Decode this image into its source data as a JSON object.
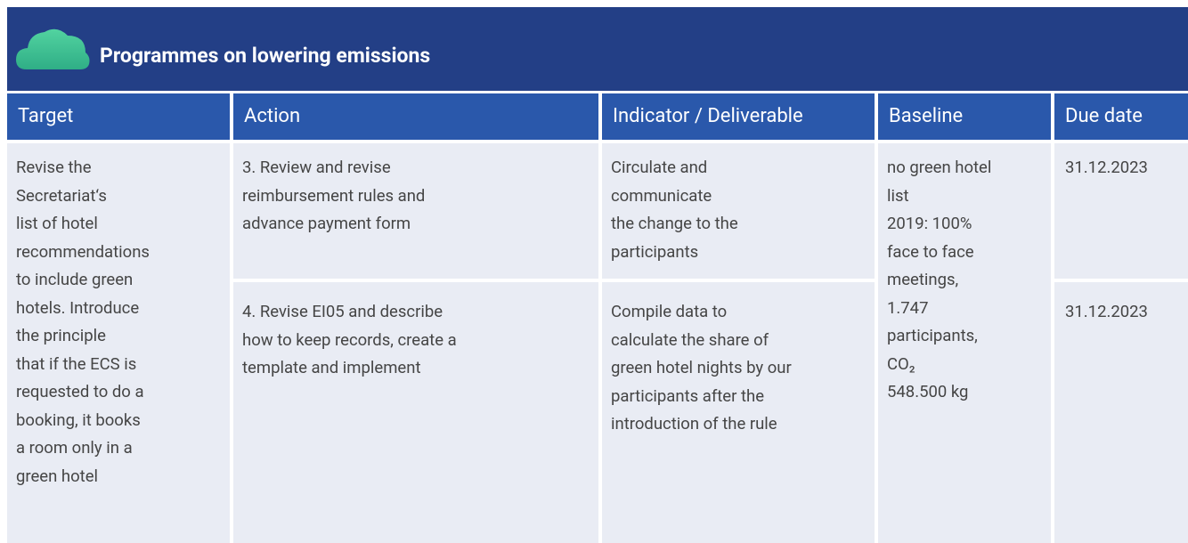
{
  "header": {
    "title": "Programmes on lowering emissions"
  },
  "table": {
    "columns": [
      "Target",
      "Action",
      "Indicator / Deliverable",
      "Baseline",
      "Due date"
    ],
    "target": [
      "Revise the",
      "Secretariat‘s",
      "list of hotel",
      "recommendations",
      "to include green",
      "hotels. Introduce",
      "the principle",
      "that if the ECS is",
      "requested to do a",
      "booking, it books",
      "a room only in a",
      "green hotel"
    ],
    "baseline": [
      "no green hotel",
      "list",
      "2019: 100%",
      "face to face",
      "meetings,",
      "1.747",
      "participants,",
      "CO₂",
      "548.500 kg"
    ],
    "rows": [
      {
        "action": [
          "3. Review and revise",
          "reimbursement rules and",
          "advance payment form"
        ],
        "indicator": [
          "Circulate and",
          "communicate",
          "the change to the",
          "participants"
        ],
        "due_date": "31.12.2023"
      },
      {
        "action": [
          "4. Revise EI05 and describe",
          "how to keep records, create a",
          "template and implement"
        ],
        "indicator": [
          "Compile data to",
          "calculate the share of",
          "green hotel nights by our",
          "participants after the",
          "introduction of the rule"
        ],
        "due_date": "31.12.2023"
      }
    ]
  }
}
